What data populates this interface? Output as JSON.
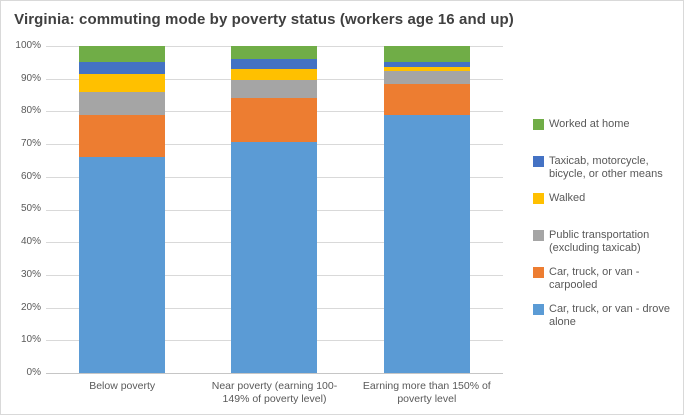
{
  "chart_data": {
    "type": "bar",
    "stacked": true,
    "percent_stacked": true,
    "title": "Virginia: commuting mode by poverty status (workers age 16 and up)",
    "xlabel": "",
    "ylabel": "",
    "ylim": [
      0,
      100
    ],
    "y_ticks": [
      "100%",
      "90%",
      "80%",
      "70%",
      "60%",
      "50%",
      "40%",
      "30%",
      "20%",
      "10%",
      "0%"
    ],
    "grid": true,
    "legend_position": "right",
    "categories": [
      "Below poverty",
      "Near poverty (earning 100-149% of poverty level)",
      "Earning more than 150% of poverty level"
    ],
    "series": [
      {
        "name": "Car, truck, or van - drove alone",
        "color": "#5B9BD5",
        "values": [
          66,
          70.5,
          79
        ]
      },
      {
        "name": "Car, truck, or van - carpooled",
        "color": "#ED7D31",
        "values": [
          13,
          13.5,
          9.5
        ]
      },
      {
        "name": "Public transportation (excluding taxicab)",
        "color": "#A5A5A5",
        "values": [
          7,
          5.5,
          4
        ]
      },
      {
        "name": "Walked",
        "color": "#FFC000",
        "values": [
          5.5,
          3.5,
          1
        ]
      },
      {
        "name": "Taxicab, motorcycle, bicycle, or other means",
        "color": "#4472C4",
        "values": [
          3.5,
          3,
          1.5
        ]
      },
      {
        "name": "Worked at home",
        "color": "#70AD47",
        "values": [
          5,
          4,
          5
        ]
      }
    ],
    "legend_order_series_indices": [
      5,
      4,
      3,
      2,
      1,
      0
    ]
  },
  "style": {
    "gridline_color": "#D9D9D9",
    "axis_line_color": "#C6C6C6",
    "title_color": "#404040",
    "label_color": "#595959",
    "border_color": "#D9D9D9",
    "background": "#FFFFFF"
  }
}
